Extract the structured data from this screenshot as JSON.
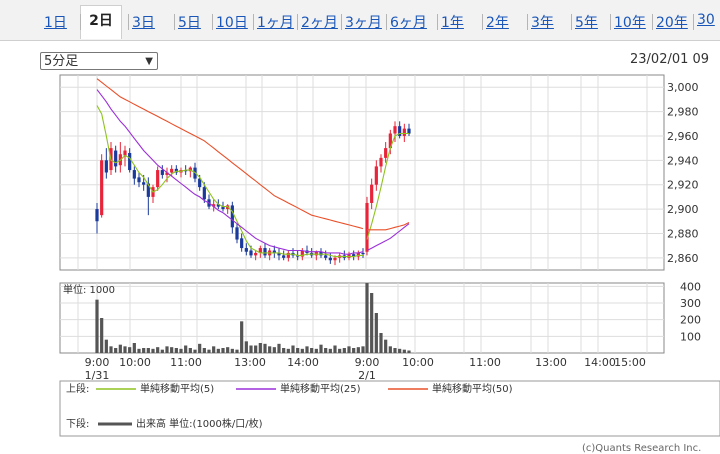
{
  "tabs": [
    {
      "label": "1日"
    },
    {
      "label": "2日",
      "active": true
    },
    {
      "label": "3日"
    },
    {
      "label": "5日"
    },
    {
      "label": "10日"
    },
    {
      "label": "1ヶ月"
    },
    {
      "label": "2ヶ月"
    },
    {
      "label": "3ヶ月"
    },
    {
      "label": "6ヶ月"
    },
    {
      "label": "1年"
    },
    {
      "label": "2年"
    },
    {
      "label": "3年"
    },
    {
      "label": "5年"
    },
    {
      "label": "10年"
    },
    {
      "label": "20年"
    },
    {
      "label": "30"
    }
  ],
  "interval_select": {
    "value": "5分足"
  },
  "datetime": "23/02/01 09",
  "credit": "(c)Quants Research Inc.",
  "colors": {
    "up": "#e8243a",
    "down": "#1a3a9c",
    "ma5": "#8fc31f",
    "ma25": "#9b30d8",
    "ma50": "#e8502a",
    "volume": "#555555",
    "grid": "#dddddd"
  },
  "chart_data": [
    {
      "type": "candlestick",
      "ylim": [
        2850,
        3010
      ],
      "yticks": [
        3000,
        2980,
        2960,
        2940,
        2920,
        2900,
        2880,
        2860
      ],
      "yticks_labels": [
        "3,000",
        "2,980",
        "2,960",
        "2,940",
        "2,920",
        "2,900",
        "2,880",
        "2,860"
      ],
      "xticks": [
        {
          "time": "9:00",
          "sub": "1/31"
        },
        {
          "time": "10:00",
          "sub": ""
        },
        {
          "time": "11:00",
          "sub": ""
        },
        {
          "time": "13:00",
          "sub": ""
        },
        {
          "time": "14:00",
          "sub": ""
        },
        {
          "time": "9:00",
          "sub": "2/1"
        },
        {
          "time": "10:00",
          "sub": ""
        },
        {
          "time": "11:00",
          "sub": ""
        },
        {
          "time": "13:00",
          "sub": ""
        },
        {
          "time": "14:00",
          "sub": ""
        },
        {
          "time": "15:00",
          "sub": ""
        }
      ],
      "candles_day1": [
        [
          2900,
          2905,
          2880,
          2890
        ],
        [
          2895,
          2945,
          2893,
          2940
        ],
        [
          2940,
          2950,
          2925,
          2930
        ],
        [
          2932,
          2955,
          2928,
          2950
        ],
        [
          2948,
          2952,
          2930,
          2935
        ],
        [
          2936,
          2955,
          2930,
          2945
        ],
        [
          2944,
          2952,
          2935,
          2948
        ],
        [
          2946,
          2950,
          2930,
          2932
        ],
        [
          2932,
          2935,
          2920,
          2925
        ],
        [
          2926,
          2930,
          2918,
          2922
        ],
        [
          2922,
          2928,
          2915,
          2920
        ],
        [
          2921,
          2926,
          2895,
          2910
        ],
        [
          2910,
          2920,
          2905,
          2918
        ],
        [
          2918,
          2935,
          2915,
          2932
        ],
        [
          2932,
          2936,
          2925,
          2928
        ],
        [
          2928,
          2934,
          2922,
          2930
        ],
        [
          2930,
          2936,
          2927,
          2933
        ],
        [
          2933,
          2936,
          2928,
          2930
        ],
        [
          2930,
          2934,
          2926,
          2932
        ],
        [
          2932,
          2936,
          2928,
          2931
        ],
        [
          2931,
          2935,
          2926,
          2934
        ],
        [
          2934,
          2938,
          2922,
          2925
        ],
        [
          2925,
          2928,
          2915,
          2918
        ],
        [
          2918,
          2922,
          2905,
          2908
        ],
        [
          2908,
          2912,
          2900,
          2902
        ],
        [
          2902,
          2908,
          2898,
          2904
        ],
        [
          2904,
          2908,
          2900,
          2902
        ],
        [
          2902,
          2906,
          2898,
          2900
        ],
        [
          2900,
          2904,
          2896,
          2903
        ],
        [
          2903,
          2906,
          2880,
          2885
        ],
        [
          2885,
          2888,
          2872,
          2875
        ],
        [
          2876,
          2880,
          2865,
          2868
        ],
        [
          2868,
          2872,
          2862,
          2865
        ],
        [
          2866,
          2870,
          2860,
          2862
        ],
        [
          2862,
          2866,
          2858,
          2864
        ],
        [
          2864,
          2870,
          2860,
          2868
        ],
        [
          2868,
          2872,
          2860,
          2862
        ],
        [
          2862,
          2868,
          2858,
          2866
        ],
        [
          2866,
          2870,
          2860,
          2864
        ],
        [
          2864,
          2868,
          2858,
          2862
        ],
        [
          2862,
          2866,
          2858,
          2860
        ],
        [
          2860,
          2866,
          2857,
          2864
        ],
        [
          2864,
          2868,
          2860,
          2862
        ],
        [
          2862,
          2866,
          2858,
          2861
        ],
        [
          2861,
          2868,
          2858,
          2866
        ],
        [
          2866,
          2870,
          2862,
          2864
        ],
        [
          2864,
          2868,
          2860,
          2862
        ],
        [
          2862,
          2866,
          2858,
          2865
        ],
        [
          2865,
          2868,
          2860,
          2862
        ],
        [
          2862,
          2866,
          2858,
          2860
        ],
        [
          2860,
          2864,
          2855,
          2858
        ],
        [
          2858,
          2862,
          2854,
          2860
        ],
        [
          2860,
          2864,
          2856,
          2862
        ],
        [
          2862,
          2866,
          2858,
          2860
        ],
        [
          2860,
          2865,
          2858,
          2863
        ],
        [
          2863,
          2866,
          2858,
          2861
        ],
        [
          2861,
          2866,
          2858,
          2864
        ],
        [
          2864,
          2868,
          2860,
          2863
        ]
      ],
      "candles_day2": [
        [
          2865,
          2910,
          2862,
          2905
        ],
        [
          2905,
          2925,
          2900,
          2920
        ],
        [
          2920,
          2940,
          2915,
          2935
        ],
        [
          2935,
          2945,
          2930,
          2942
        ],
        [
          2942,
          2955,
          2938,
          2950
        ],
        [
          2950,
          2965,
          2945,
          2962
        ],
        [
          2962,
          2972,
          2955,
          2968
        ],
        [
          2968,
          2972,
          2958,
          2960
        ],
        [
          2960,
          2970,
          2955,
          2966
        ],
        [
          2966,
          2970,
          2960,
          2962
        ]
      ],
      "ma5": [
        [
          2985,
          2978,
          2960,
          2940,
          2938,
          2940,
          2944,
          2942,
          2936,
          2930,
          2926,
          2920,
          2914,
          2916,
          2920,
          2925,
          2929,
          2931,
          2931,
          2932,
          2932,
          2930,
          2926,
          2920,
          2914,
          2908,
          2904,
          2902,
          2902,
          2898,
          2890,
          2882,
          2874,
          2868,
          2866,
          2864,
          2864,
          2864,
          2864,
          2864,
          2863,
          2863,
          2863,
          2862,
          2862,
          2863,
          2863,
          2863,
          2863,
          2863,
          2862,
          2861,
          2861,
          2861,
          2861,
          2861,
          2862,
          2862
        ],
        [
          2875,
          2888,
          2902,
          2918,
          2935,
          2950,
          2960,
          2962,
          2962,
          2962
        ]
      ],
      "ma25": [
        [
          2998,
          2993,
          2988,
          2982,
          2977,
          2972,
          2968,
          2963,
          2958,
          2953,
          2948,
          2944,
          2940,
          2936,
          2933,
          2930,
          2927,
          2924,
          2921,
          2918,
          2915,
          2912,
          2910,
          2907,
          2905,
          2902,
          2899,
          2897,
          2894,
          2891,
          2888,
          2885,
          2882,
          2879,
          2876,
          2874,
          2872,
          2870,
          2869,
          2868,
          2867,
          2866,
          2866,
          2866,
          2866,
          2865,
          2865,
          2865,
          2865,
          2864,
          2864,
          2864,
          2864,
          2863,
          2863,
          2864,
          2864,
          2865
        ],
        [
          2866,
          2868,
          2870,
          2872,
          2874,
          2876,
          2879,
          2882,
          2885,
          2888
        ]
      ],
      "ma50": [
        [
          3007,
          3004,
          3001,
          2998,
          2995,
          2992,
          2990,
          2988,
          2986,
          2984,
          2982,
          2980,
          2978,
          2976,
          2974,
          2972,
          2970,
          2968,
          2966,
          2964,
          2962,
          2960,
          2958,
          2956,
          2953,
          2950,
          2947,
          2944,
          2941,
          2938,
          2935,
          2932,
          2929,
          2926,
          2923,
          2920,
          2917,
          2914,
          2911,
          2909,
          2907,
          2905,
          2903,
          2901,
          2899,
          2897,
          2895,
          2894,
          2893,
          2892,
          2891,
          2890,
          2889,
          2888,
          2887,
          2886,
          2885,
          2884
        ],
        [
          2883,
          2883,
          2883,
          2883,
          2883,
          2884,
          2885,
          2886,
          2887,
          2889
        ]
      ],
      "legend": [
        {
          "name": "単純移動平均(5)",
          "color_key": "ma5"
        },
        {
          "name": "単純移動平均(25)",
          "color_key": "ma25"
        },
        {
          "name": "単純移動平均(50)",
          "color_key": "ma50"
        }
      ],
      "legend_row_label": "上段:"
    },
    {
      "type": "bar",
      "ylim": [
        0,
        420
      ],
      "yticks": [
        400,
        300,
        200,
        100
      ],
      "unit_label": "単位: 1000",
      "volume_day1": [
        320,
        210,
        80,
        40,
        30,
        50,
        40,
        35,
        60,
        25,
        30,
        30,
        25,
        35,
        20,
        40,
        35,
        30,
        25,
        45,
        30,
        20,
        55,
        30,
        20,
        40,
        25,
        30,
        35,
        25,
        20,
        190,
        70,
        45,
        45,
        60,
        55,
        40,
        35,
        55,
        30,
        25,
        45,
        30,
        25,
        40,
        30,
        25,
        50,
        30,
        25,
        45,
        25,
        30,
        40,
        30,
        35,
        40
      ],
      "volume_day2": [
        420,
        360,
        240,
        120,
        80,
        40,
        30,
        25,
        20,
        15
      ],
      "legend": [
        {
          "name": "出来高 単位:(1000株/口/枚)",
          "color_key": "volume"
        }
      ],
      "legend_row_label": "下段:"
    }
  ]
}
